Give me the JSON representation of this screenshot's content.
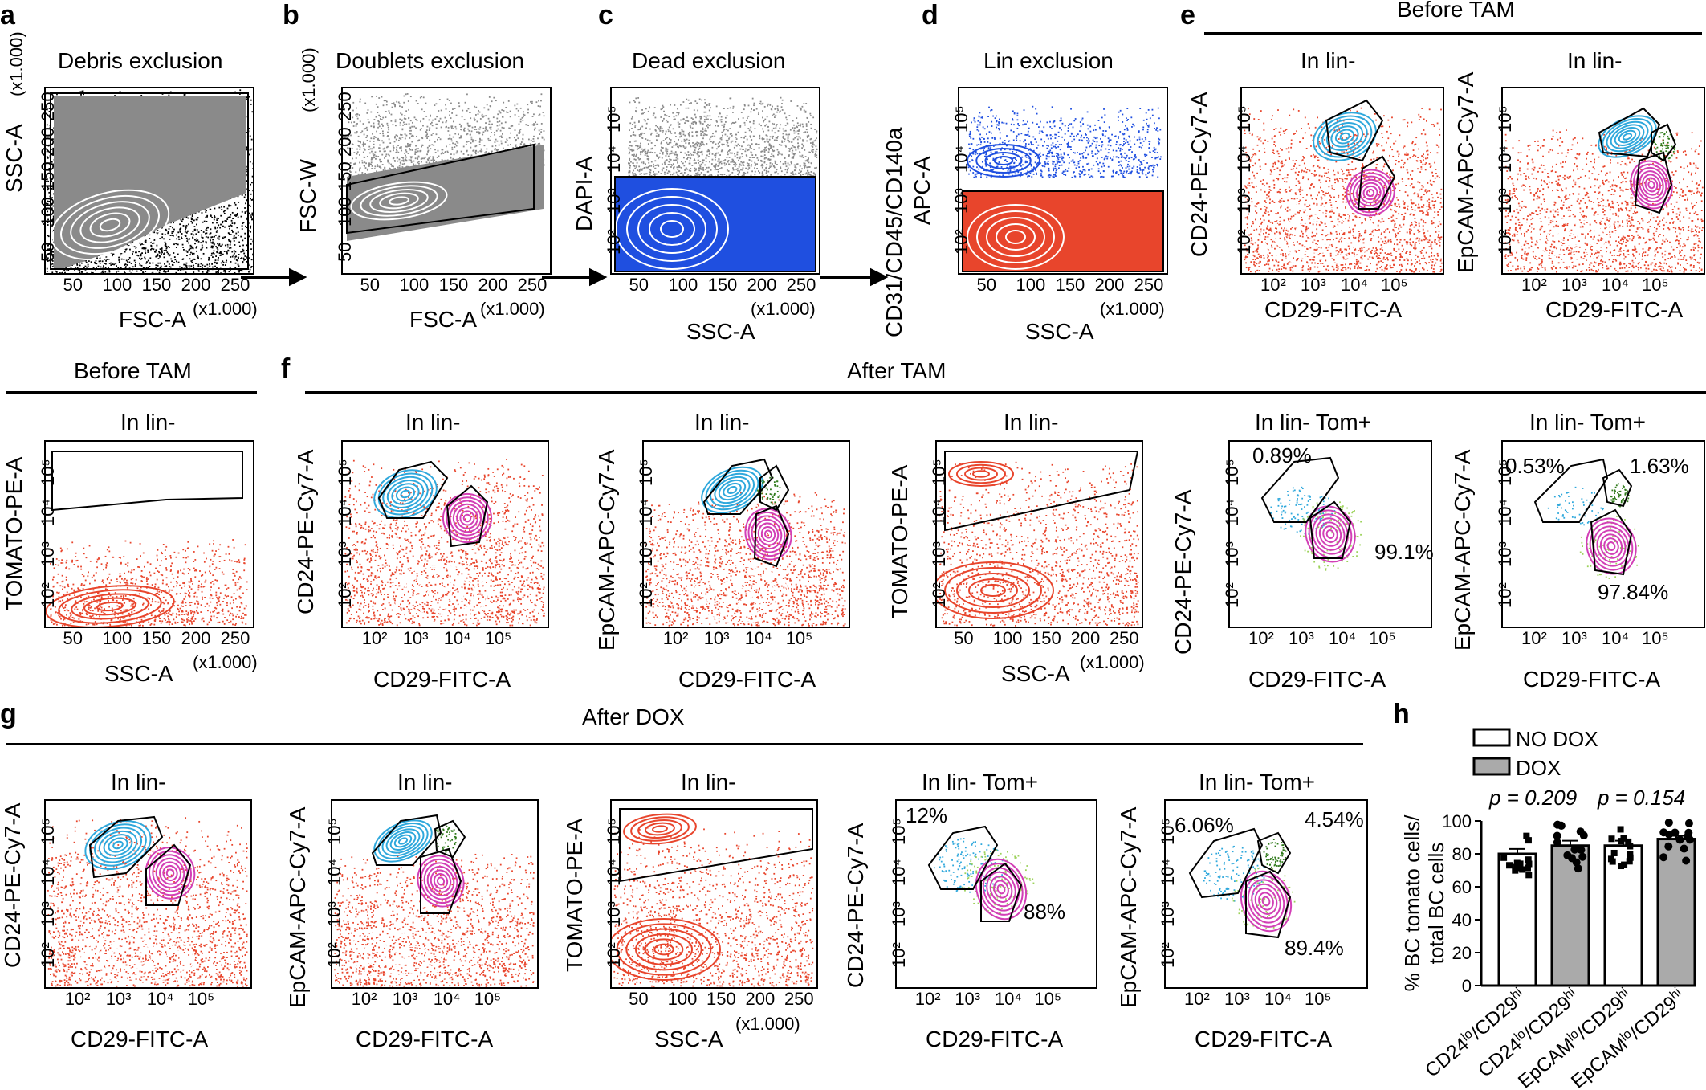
{
  "colors": {
    "gray": "#8a8a8a",
    "blue": "#1f4fe0",
    "red": "#e8452c",
    "cyan": "#2fa8dc",
    "magenta": "#d23fb6",
    "green": "#2f7a1a",
    "lightgreen": "#9cd25a"
  },
  "panels": {
    "a": "a",
    "b": "b",
    "c": "c",
    "d": "d",
    "e": "e",
    "f": "f",
    "g": "g",
    "h": "h"
  },
  "groups": {
    "before_tam": "Before TAM",
    "after_tam": "After TAM",
    "after_dox": "After DOX"
  },
  "titles": {
    "debris": "Debris exclusion",
    "doublets": "Doublets exclusion",
    "dead": "Dead exclusion",
    "lin": "Lin exclusion",
    "in_lin": "In lin-",
    "in_lin_tom": "In lin- Tom+"
  },
  "axes": {
    "ssc": "SSC-A",
    "fsc": "FSC-A",
    "fscw": "FSC-W",
    "ssc_k": "SSC-A",
    "dapi": "DAPI-A",
    "lin": "CD31/CD45/CD140a",
    "apc": "APC-A",
    "cd24": "CD24-PE-Cy7-A",
    "epcam": "EpCAM-APC-Cy7-A",
    "cd29": "CD29-FITC-A",
    "tomato": "TOMATO-PE-A",
    "x1000": "(x1.000)",
    "ssc_unit": "SSC-A\n(x1.000)",
    "fscw_unit": "(x1.000)"
  },
  "ticks": {
    "lin": [
      "50",
      "100",
      "150",
      "200",
      "250"
    ],
    "linY": [
      "50",
      "100",
      "150",
      "200",
      "250"
    ],
    "log": [
      "10²",
      "10³",
      "10⁴",
      "10⁵"
    ],
    "logY": [
      "10²",
      "10³",
      "10⁴",
      "10⁵"
    ]
  },
  "percents": {
    "f_cd24_lo": "0.89%",
    "f_cd24_hi": "99.1%",
    "f_ep_lo": "0.53%",
    "f_ep_mid": "1.63%",
    "f_ep_hi": "97.84%",
    "g_cd24_lo": "12%",
    "g_cd24_hi": "88%",
    "g_ep_lo": "6.06%",
    "g_ep_mid": "4.54%",
    "g_ep_hi": "89.4%"
  },
  "chart_data": {
    "type": "bar",
    "categories": [
      "CD24lo/CD29hi",
      "CD24lo/CD29hi",
      "EpCAMlo/CD29hi",
      "EpCAMlo/CD29hi"
    ],
    "category_labels": [
      [
        "CD24",
        "lo",
        "/CD29",
        "hi"
      ],
      [
        "CD24",
        "lo",
        "/CD29",
        "hi"
      ],
      [
        "EpCAM",
        "lo",
        "/CD29",
        "hi"
      ],
      [
        "EpCAM",
        "lo",
        "/CD29",
        "hi"
      ]
    ],
    "series": [
      {
        "name": "NO DOX",
        "fill": "#ffffff",
        "indices": [
          0,
          2
        ]
      },
      {
        "name": "DOX",
        "fill": "#aaaaaa",
        "indices": [
          1,
          3
        ]
      }
    ],
    "values": [
      80,
      85,
      85,
      89
    ],
    "errors": [
      3,
      3,
      3,
      2
    ],
    "ylabel": "% BC tomato cells/\ntotal BC cells",
    "ylim": [
      0,
      100
    ],
    "yticks": [
      "0",
      "20",
      "40",
      "60",
      "80",
      "100"
    ],
    "pvalues": [
      "p = 0.209",
      "p = 0.154"
    ],
    "legend": [
      "NO DOX",
      "DOX"
    ]
  }
}
